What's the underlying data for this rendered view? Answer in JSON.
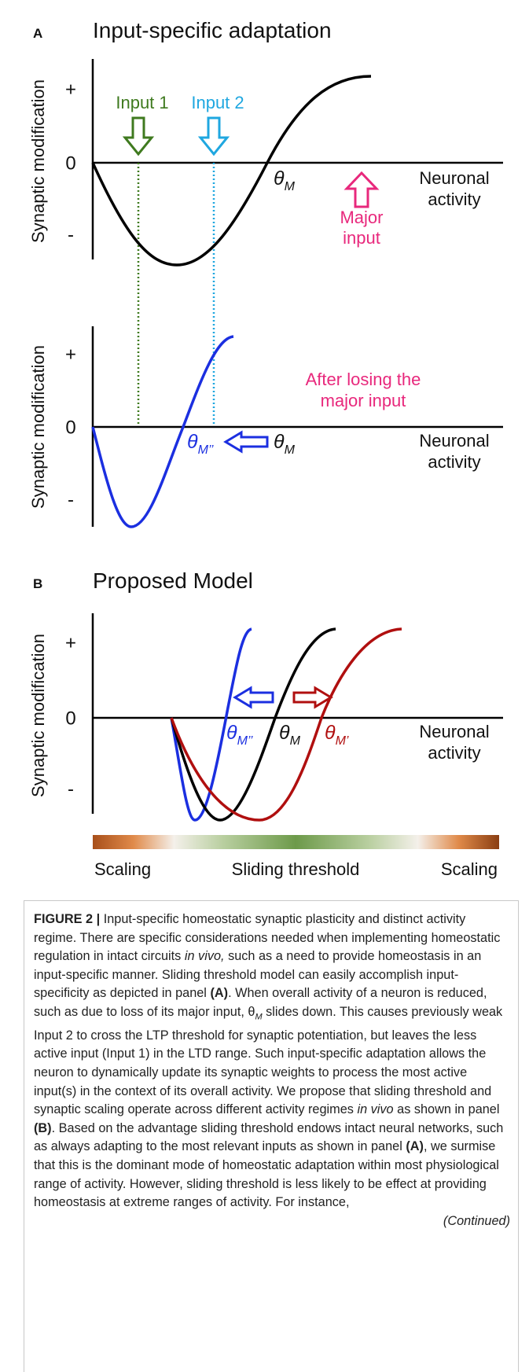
{
  "panel_a": {
    "label": "A",
    "title": "Input-specific adaptation",
    "top_plot": {
      "y_label": "Synaptic modification",
      "y_marks": [
        "+",
        "0",
        "-"
      ],
      "x_label_lines": [
        "Neuronal",
        "activity"
      ],
      "inputs": [
        "Input 1",
        "Input 2"
      ],
      "threshold": {
        "symbol": "θ",
        "subscript": "M"
      },
      "major_input_lines": [
        "Major",
        "input"
      ]
    },
    "bottom_plot": {
      "y_label": "Synaptic modification",
      "y_marks": [
        "+",
        "0",
        "-"
      ],
      "x_label_lines": [
        "Neuronal",
        "activity"
      ],
      "annotation_lines": [
        "After losing the",
        "major input"
      ],
      "new_threshold": {
        "symbol": "θ",
        "subscript": "M’’"
      },
      "old_threshold": {
        "symbol": "θ",
        "subscript": "M"
      }
    }
  },
  "panel_b": {
    "label": "B",
    "title": "Proposed Model",
    "y_label": "Synaptic modification",
    "y_marks": [
      "+",
      "0",
      "-"
    ],
    "x_label_lines": [
      "Neuronal",
      "activity"
    ],
    "thresholds": [
      {
        "symbol": "θ",
        "subscript": "M’’"
      },
      {
        "symbol": "θ",
        "subscript": "M"
      },
      {
        "symbol": "θ",
        "subscript": "M’"
      }
    ],
    "bar_labels": [
      "Scaling",
      "Sliding threshold",
      "Scaling"
    ]
  },
  "caption": {
    "segments": [
      "FIGURE 2 |",
      " Input-specific homeostatic synaptic plasticity and distinct activity regime. There are specific considerations needed when implementing homeostatic regulation in intact circuits ",
      "in vivo,",
      " such as a need to provide homeostasis in an input-specific manner. Sliding threshold model can easily accomplish input-specificity as depicted in panel ",
      "(A)",
      ". When overall activity of a neuron is reduced, such as due to loss of its major input, θ",
      "M",
      " slides down. This causes previously weak Input 2 to cross the LTP threshold for synaptic potentiation, but leaves the less active input (Input 1) in the LTD range. Such input-specific adaptation allows the neuron to dynamically update its synaptic weights to process the most active input(s) in the context of its overall activity. We propose that sliding threshold and synaptic scaling operate across different activity regimes ",
      "in vivo",
      " as shown in panel ",
      "(B)",
      ". Based on the advantage sliding threshold endows intact neural networks, such as always adapting to the most relevant inputs as shown in panel ",
      "(A)",
      ", we surmise that this is the dominant mode of homeostatic adaptation within most physiological range of activity. However, sliding threshold is less likely to be effect at providing homeostasis at extreme ranges of activity. For instance,"
    ],
    "continued": "(Continued)"
  }
}
